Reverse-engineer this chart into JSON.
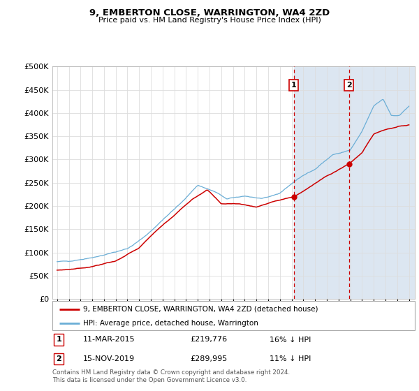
{
  "title": "9, EMBERTON CLOSE, WARRINGTON, WA4 2ZD",
  "subtitle": "Price paid vs. HM Land Registry's House Price Index (HPI)",
  "ytick_values": [
    0,
    50000,
    100000,
    150000,
    200000,
    250000,
    300000,
    350000,
    400000,
    450000,
    500000
  ],
  "ylim": [
    0,
    500000
  ],
  "xlim_start": 1994.6,
  "xlim_end": 2025.5,
  "hpi_color": "#6baed6",
  "price_color": "#cc0000",
  "marker1_date": 2015.19,
  "marker1_price": 219776,
  "marker2_date": 2019.88,
  "marker2_price": 289995,
  "marker1_text": "11-MAR-2015",
  "marker1_value_text": "£219,776",
  "marker1_pct_text": "16% ↓ HPI",
  "marker2_text": "15-NOV-2019",
  "marker2_value_text": "£289,995",
  "marker2_pct_text": "11% ↓ HPI",
  "vline_color": "#cc0000",
  "shaded_color": "#dce6f1",
  "legend_line1": "9, EMBERTON CLOSE, WARRINGTON, WA4 2ZD (detached house)",
  "legend_line2": "HPI: Average price, detached house, Warrington",
  "footer": "Contains HM Land Registry data © Crown copyright and database right 2024.\nThis data is licensed under the Open Government Licence v3.0.",
  "x_ticks": [
    1995,
    1996,
    1997,
    1998,
    1999,
    2000,
    2001,
    2002,
    2003,
    2004,
    2005,
    2006,
    2007,
    2008,
    2009,
    2010,
    2011,
    2012,
    2013,
    2014,
    2015,
    2016,
    2017,
    2018,
    2019,
    2020,
    2021,
    2022,
    2023,
    2024,
    2025
  ],
  "hpi_anchors_t": [
    1995.0,
    1996.0,
    1997.5,
    1999.0,
    2001.0,
    2002.5,
    2004.0,
    2005.5,
    2007.0,
    2008.5,
    2009.5,
    2011.0,
    2012.5,
    2014.0,
    2015.5,
    2017.0,
    2018.5,
    2020.0,
    2021.0,
    2022.0,
    2022.8,
    2023.5,
    2024.2,
    2025.0
  ],
  "hpi_anchors_v": [
    80000,
    82000,
    87000,
    95000,
    108000,
    135000,
    170000,
    205000,
    245000,
    230000,
    215000,
    222000,
    215000,
    228000,
    258000,
    280000,
    310000,
    320000,
    360000,
    415000,
    430000,
    395000,
    395000,
    415000
  ],
  "price_anchors_t": [
    1995.0,
    1996.5,
    1998.0,
    2000.0,
    2002.0,
    2003.5,
    2005.0,
    2006.5,
    2007.8,
    2009.0,
    2010.5,
    2012.0,
    2013.5,
    2015.19,
    2016.5,
    2018.0,
    2019.88,
    2021.0,
    2022.0,
    2023.0,
    2024.0,
    2025.0
  ],
  "price_anchors_v": [
    62000,
    65000,
    70000,
    82000,
    110000,
    148000,
    180000,
    215000,
    235000,
    205000,
    205000,
    198000,
    210000,
    219776,
    240000,
    265000,
    289995,
    315000,
    355000,
    365000,
    370000,
    375000
  ]
}
